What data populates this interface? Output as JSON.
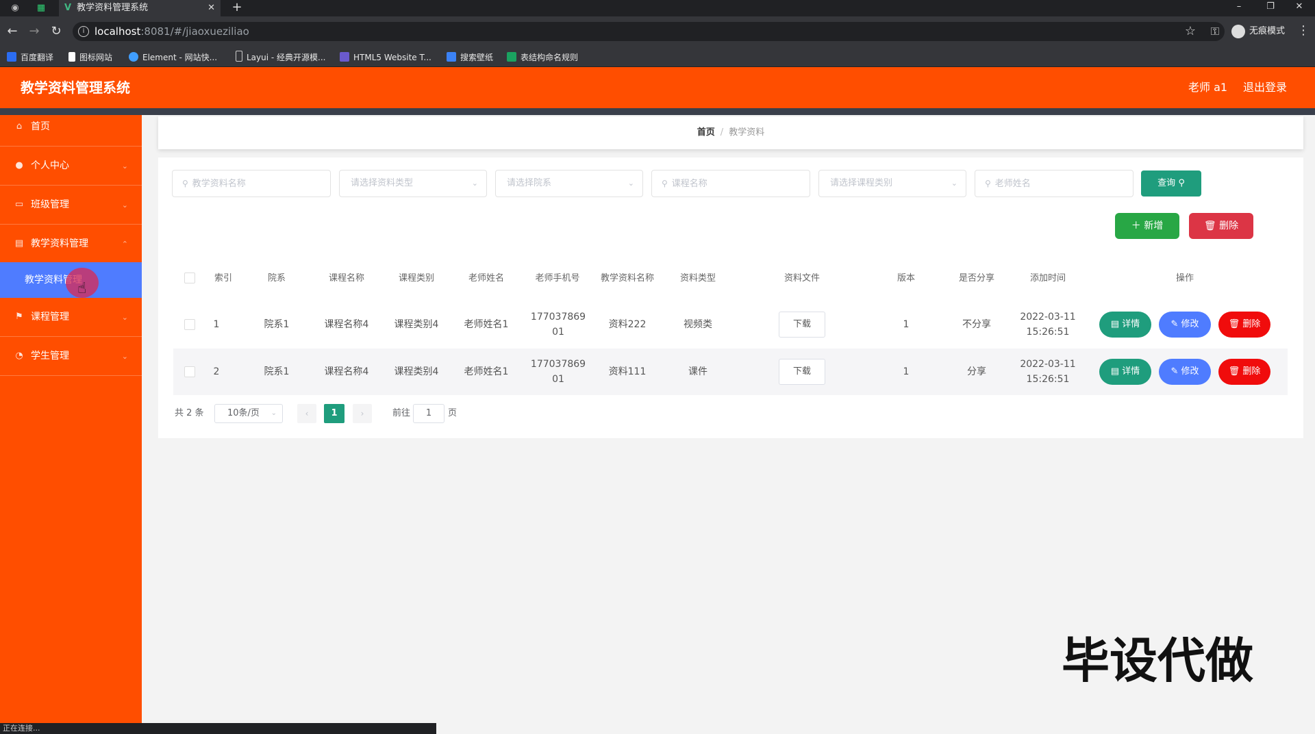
{
  "browser": {
    "tab_title": "教学资料管理系统",
    "url_host": "localhost",
    "url_path": ":8081/#/jiaoxueziliao",
    "incognito_label": "无痕模式",
    "bookmarks": [
      "百度翻译",
      "图标网站",
      "Element - 网站快...",
      "Layui - 经典开源模...",
      "HTML5 Website T...",
      "搜索壁纸",
      "表结构命名规则"
    ],
    "status_text": "正在连接..."
  },
  "header": {
    "title": "教学资料管理系统",
    "user": "老师 a1",
    "logout": "退出登录"
  },
  "sidebar": {
    "items": [
      {
        "label": "首页",
        "icon": "home-icon"
      },
      {
        "label": "个人中心",
        "icon": "user-icon"
      },
      {
        "label": "班级管理",
        "icon": "class-icon"
      },
      {
        "label": "教学资料管理",
        "icon": "materials-icon"
      },
      {
        "label": "课程管理",
        "icon": "flag-icon"
      },
      {
        "label": "学生管理",
        "icon": "student-icon"
      }
    ],
    "active_sub": "教学资料管理"
  },
  "breadcrumb": {
    "home": "首页",
    "current": "教学资料"
  },
  "filters": {
    "material_name": "教学资料名称",
    "material_type": "请选择资料类型",
    "department": "请选择院系",
    "course_name": "课程名称",
    "course_category": "请选择课程类别",
    "teacher_name": "老师姓名",
    "query": "查询"
  },
  "actions": {
    "add": "新增",
    "delete": "删除"
  },
  "table": {
    "headers": [
      "索引",
      "院系",
      "课程名称",
      "课程类别",
      "老师姓名",
      "老师手机号",
      "教学资料名称",
      "资料类型",
      "资料文件",
      "版本",
      "是否分享",
      "添加时间",
      "操作"
    ],
    "rows": [
      {
        "index": "1",
        "department": "院系1",
        "course_name": "课程名称4",
        "course_category": "课程类别4",
        "teacher": "老师姓名1",
        "phone": "17703786901",
        "material": "资料222",
        "type": "视频类",
        "file": "下载",
        "version": "1",
        "shared": "不分享",
        "date": "2022-03-11",
        "time": "15:26:51"
      },
      {
        "index": "2",
        "department": "院系1",
        "course_name": "课程名称4",
        "course_category": "课程类别4",
        "teacher": "老师姓名1",
        "phone": "17703786901",
        "material": "资料111",
        "type": "课件",
        "file": "下载",
        "version": "1",
        "shared": "分享",
        "date": "2022-03-11",
        "time": "15:26:51"
      }
    ],
    "op_detail": "详情",
    "op_edit": "修改",
    "op_delete": "删除"
  },
  "pagination": {
    "total": "共 2 条",
    "page_size": "10条/页",
    "current_page": "1",
    "goto_prefix": "前往",
    "goto_value": "1",
    "goto_suffix": "页"
  },
  "watermark": "毕设代做",
  "colors": {
    "brand": "#ff4e00",
    "active_menu": "#4f7cff",
    "teal": "#1f9d7d",
    "danger": "#f00c0c"
  }
}
